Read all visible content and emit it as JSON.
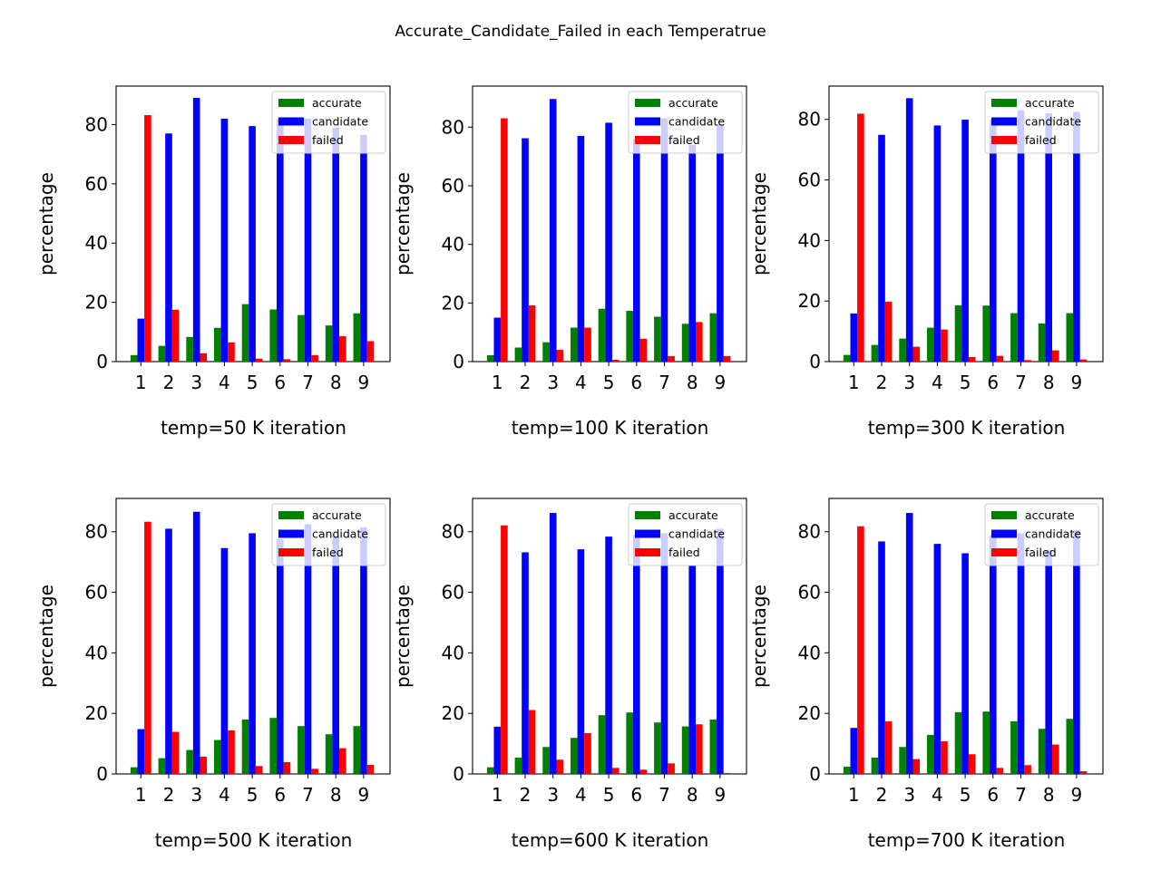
{
  "figure": {
    "title": "Accurate_Candidate_Failed in each Temperatrue"
  },
  "colors": {
    "accurate": "#008000",
    "candidate": "#0000ff",
    "failed": "#ff0000"
  },
  "chart_data": [
    {
      "type": "bar",
      "xlabel": "temp=50 K  iteration",
      "ylabel": "percentage",
      "categories": [
        "1",
        "2",
        "3",
        "4",
        "5",
        "6",
        "7",
        "8",
        "9"
      ],
      "ylim": [
        0,
        93
      ],
      "yticks": [
        0,
        20,
        40,
        60,
        80
      ],
      "legend": "top-right",
      "series": [
        {
          "name": "accurate",
          "values": [
            2.2,
            5.3,
            8.3,
            11.4,
            19.4,
            17.6,
            15.7,
            12.2,
            16.3
          ]
        },
        {
          "name": "candidate",
          "values": [
            14.5,
            77.0,
            89.0,
            82.0,
            79.5,
            82.0,
            82.0,
            79.0,
            76.5
          ]
        },
        {
          "name": "failed",
          "values": [
            83.2,
            17.5,
            2.8,
            6.5,
            1.0,
            0.8,
            2.2,
            8.6,
            6.9
          ]
        }
      ]
    },
    {
      "type": "bar",
      "xlabel": "temp=100 K  iteration",
      "ylabel": "percentage",
      "categories": [
        "1",
        "2",
        "3",
        "4",
        "5",
        "6",
        "7",
        "8",
        "9"
      ],
      "ylim": [
        0,
        94
      ],
      "yticks": [
        0,
        20,
        40,
        60,
        80
      ],
      "legend": "top-right",
      "series": [
        {
          "name": "accurate",
          "values": [
            2.2,
            4.8,
            6.6,
            11.6,
            18.0,
            17.3,
            15.3,
            12.9,
            16.5
          ]
        },
        {
          "name": "candidate",
          "values": [
            15.0,
            76.2,
            89.6,
            77.0,
            81.5,
            76.0,
            83.0,
            74.0,
            81.0
          ]
        },
        {
          "name": "failed",
          "values": [
            83.0,
            19.2,
            4.0,
            11.6,
            0.6,
            7.8,
            1.9,
            13.5,
            1.9
          ]
        }
      ]
    },
    {
      "type": "bar",
      "xlabel": "temp=300 K  iteration",
      "ylabel": "percentage",
      "categories": [
        "1",
        "2",
        "3",
        "4",
        "5",
        "6",
        "7",
        "8",
        "9"
      ],
      "ylim": [
        0,
        91
      ],
      "yticks": [
        0,
        20,
        40,
        60,
        80
      ],
      "legend": "top-right",
      "series": [
        {
          "name": "accurate",
          "values": [
            2.2,
            5.5,
            7.6,
            11.2,
            18.6,
            18.5,
            16.0,
            12.6,
            16.0
          ]
        },
        {
          "name": "candidate",
          "values": [
            15.9,
            74.9,
            87.0,
            78.0,
            79.9,
            80.0,
            83.0,
            82.0,
            82.5
          ]
        },
        {
          "name": "failed",
          "values": [
            81.9,
            19.8,
            4.9,
            10.6,
            1.5,
            1.9,
            0.5,
            3.7,
            0.7
          ]
        }
      ]
    },
    {
      "type": "bar",
      "xlabel": "temp=500 K  iteration",
      "ylabel": "percentage",
      "categories": [
        "1",
        "2",
        "3",
        "4",
        "5",
        "6",
        "7",
        "8",
        "9"
      ],
      "ylim": [
        0,
        91
      ],
      "yticks": [
        0,
        20,
        40,
        60,
        80
      ],
      "legend": "top-right",
      "series": [
        {
          "name": "accurate",
          "values": [
            2.2,
            5.2,
            7.9,
            11.2,
            18.0,
            18.5,
            15.8,
            13.1,
            15.8
          ]
        },
        {
          "name": "candidate",
          "values": [
            14.8,
            81.0,
            86.6,
            74.6,
            79.5,
            77.5,
            82.5,
            78.5,
            81.5
          ]
        },
        {
          "name": "failed",
          "values": [
            83.3,
            13.9,
            5.7,
            14.4,
            2.6,
            3.9,
            1.7,
            8.5,
            3.0
          ]
        }
      ]
    },
    {
      "type": "bar",
      "xlabel": "temp=600 K  iteration",
      "ylabel": "percentage",
      "categories": [
        "1",
        "2",
        "3",
        "4",
        "5",
        "6",
        "7",
        "8",
        "9"
      ],
      "ylim": [
        0,
        91
      ],
      "yticks": [
        0,
        20,
        40,
        60,
        80
      ],
      "legend": "top-right",
      "series": [
        {
          "name": "accurate",
          "values": [
            2.2,
            5.4,
            8.9,
            11.9,
            19.4,
            20.3,
            17.0,
            15.7,
            18.0
          ]
        },
        {
          "name": "candidate",
          "values": [
            15.6,
            73.2,
            86.2,
            74.2,
            78.4,
            79.0,
            79.5,
            69.0,
            81.0
          ]
        },
        {
          "name": "failed",
          "values": [
            82.1,
            21.1,
            4.7,
            13.5,
            2.0,
            1.4,
            3.5,
            16.4,
            0.3
          ]
        }
      ]
    },
    {
      "type": "bar",
      "xlabel": "temp=700 K  iteration",
      "ylabel": "percentage",
      "categories": [
        "1",
        "2",
        "3",
        "4",
        "5",
        "6",
        "7",
        "8",
        "9"
      ],
      "ylim": [
        0,
        91
      ],
      "yticks": [
        0,
        20,
        40,
        60,
        80
      ],
      "legend": "top-right",
      "series": [
        {
          "name": "accurate",
          "values": [
            2.4,
            5.4,
            8.9,
            12.9,
            20.4,
            20.6,
            17.4,
            14.9,
            18.2
          ]
        },
        {
          "name": "candidate",
          "values": [
            15.2,
            76.8,
            86.2,
            76.0,
            72.9,
            79.0,
            79.5,
            74.0,
            80.5
          ]
        },
        {
          "name": "failed",
          "values": [
            81.8,
            17.4,
            4.9,
            10.8,
            6.5,
            2.0,
            2.9,
            9.7,
            0.9
          ]
        }
      ]
    }
  ]
}
